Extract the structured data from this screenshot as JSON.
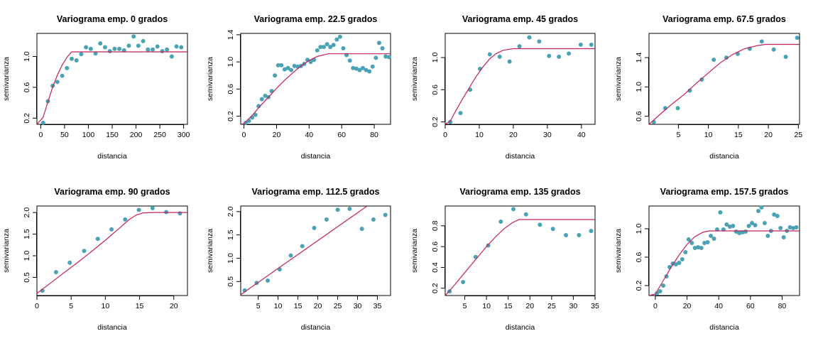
{
  "colors": {
    "points": "#4aa3b5",
    "model": "#c5205c",
    "axes": "#000000"
  },
  "chart_data": [
    {
      "type": "scatter",
      "title": "Variograma emp. 0 grados",
      "xlabel": "distancia",
      "ylabel": "semivarianza",
      "xlim": [
        -8,
        308
      ],
      "ylim": [
        0.12,
        1.3
      ],
      "xticks": [
        "0",
        "50",
        "100",
        "150",
        "200",
        "250",
        "300"
      ],
      "xtick_values": [
        0,
        50,
        100,
        150,
        200,
        250,
        300
      ],
      "yticks": [
        "0.2",
        "0.6",
        "1.0"
      ],
      "ytick_values": [
        0.2,
        0.6,
        1.0
      ],
      "points": {
        "x": [
          5,
          15,
          25,
          35,
          45,
          55,
          65,
          75,
          85,
          95,
          105,
          115,
          125,
          135,
          145,
          155,
          165,
          175,
          185,
          195,
          205,
          215,
          225,
          235,
          245,
          255,
          265,
          275,
          285,
          295
        ],
        "y": [
          0.14,
          0.42,
          0.62,
          0.67,
          0.75,
          0.85,
          0.97,
          0.95,
          1.03,
          1.12,
          1.1,
          1.04,
          1.17,
          1.12,
          1.07,
          1.1,
          1.1,
          1.08,
          1.14,
          1.26,
          1.14,
          1.2,
          1.09,
          1.09,
          1.13,
          1.07,
          1.09,
          1.0,
          1.13,
          1.12
        ]
      },
      "model": {
        "x": [
          -8,
          5,
          15,
          25,
          35,
          45,
          55,
          62,
          65,
          70,
          308
        ],
        "y": [
          0.12,
          0.21,
          0.41,
          0.6,
          0.76,
          0.89,
          0.99,
          1.04,
          1.06,
          1.06,
          1.06
        ]
      }
    },
    {
      "type": "scatter",
      "title": "Variograma emp. 22.5 grados",
      "xlabel": "distancia",
      "ylabel": "semivarianza",
      "xlim": [
        -2,
        90
      ],
      "ylim": [
        0.08,
        1.42
      ],
      "xticks": [
        "0",
        "20",
        "40",
        "60",
        "80"
      ],
      "xtick_values": [
        0,
        20,
        40,
        60,
        80
      ],
      "yticks": [
        "0.2",
        "0.6",
        "1.0",
        "1.4"
      ],
      "ytick_values": [
        0.2,
        0.6,
        1.0,
        1.4
      ],
      "points": {
        "x": [
          1,
          3,
          5,
          7,
          9,
          11,
          13,
          15,
          17,
          19,
          21,
          23,
          25,
          27,
          29,
          31,
          33,
          35,
          37,
          39,
          41,
          43,
          45,
          47,
          49,
          51,
          53,
          55,
          57,
          59,
          61,
          63,
          65,
          67,
          69,
          71,
          73,
          75,
          77,
          79,
          81,
          83,
          85,
          87,
          89
        ],
        "y": [
          0.1,
          0.13,
          0.18,
          0.22,
          0.35,
          0.45,
          0.5,
          0.48,
          0.57,
          0.8,
          0.95,
          0.95,
          0.89,
          0.91,
          0.88,
          0.94,
          0.93,
          0.94,
          0.97,
          1.03,
          1.0,
          1.03,
          1.17,
          1.22,
          1.22,
          1.26,
          1.22,
          1.25,
          1.33,
          1.37,
          1.2,
          1.1,
          1.02,
          0.91,
          0.9,
          0.88,
          0.91,
          0.88,
          0.86,
          0.93,
          1.06,
          1.28,
          1.2,
          1.08,
          1.07
        ]
      },
      "model": {
        "x": [
          -2,
          0,
          5,
          10,
          15,
          20,
          25,
          30,
          35,
          40,
          45,
          50,
          52,
          90
        ],
        "y": [
          0.08,
          0.09,
          0.21,
          0.35,
          0.48,
          0.61,
          0.73,
          0.84,
          0.94,
          1.02,
          1.08,
          1.11,
          1.12,
          1.12
        ]
      }
    },
    {
      "type": "scatter",
      "title": "Variograma emp. 45 grados",
      "xlabel": "distancia",
      "ylabel": "semivarianza",
      "xlim": [
        0,
        44
      ],
      "ylim": [
        0.17,
        1.3
      ],
      "xticks": [
        "0",
        "10",
        "20",
        "30",
        "40"
      ],
      "xtick_values": [
        0,
        10,
        20,
        30,
        40
      ],
      "yticks": [
        "0.2",
        "0.6",
        "1.0"
      ],
      "ytick_values": [
        0.2,
        0.6,
        1.0
      ],
      "points": {
        "x": [
          1.5,
          4.5,
          7.3,
          10.2,
          13.1,
          16.0,
          18.9,
          21.8,
          24.7,
          27.6,
          30.5,
          33.4,
          36.3,
          39.8,
          42.9
        ],
        "y": [
          0.2,
          0.31,
          0.6,
          0.86,
          1.04,
          1.01,
          0.95,
          1.14,
          1.25,
          1.2,
          1.02,
          1.01,
          1.05,
          1.16,
          1.16
        ]
      },
      "model": {
        "x": [
          0,
          1.5,
          3,
          5,
          7,
          9,
          11,
          13,
          15,
          17,
          18.5,
          20,
          44
        ],
        "y": [
          0.17,
          0.21,
          0.33,
          0.48,
          0.62,
          0.76,
          0.88,
          0.98,
          1.05,
          1.09,
          1.1,
          1.11,
          1.11
        ]
      }
    },
    {
      "type": "scatter",
      "title": "Variograma emp. 67.5 grados",
      "xlabel": "distancia",
      "ylabel": "semivarianza",
      "xlim": [
        0.1,
        25.2
      ],
      "ylim": [
        0.49,
        1.73
      ],
      "xticks": [
        "5",
        "10",
        "15",
        "20",
        "25"
      ],
      "xtick_values": [
        5,
        10,
        15,
        20,
        25
      ],
      "yticks": [
        "0.6",
        "1.0",
        "1.4"
      ],
      "ytick_values": [
        0.6,
        1.0,
        1.4
      ],
      "points": {
        "x": [
          0.9,
          2.8,
          4.9,
          6.9,
          8.9,
          10.9,
          13.0,
          14.9,
          16.9,
          18.9,
          20.9,
          22.9,
          24.8
        ],
        "y": [
          0.52,
          0.71,
          0.71,
          0.95,
          1.1,
          1.37,
          1.4,
          1.45,
          1.52,
          1.62,
          1.51,
          1.41,
          1.67
        ]
      },
      "model": {
        "x": [
          0.1,
          2,
          4,
          6,
          8,
          10,
          12,
          14,
          16,
          18,
          19.5,
          20.5,
          25.2
        ],
        "y": [
          0.49,
          0.63,
          0.77,
          0.9,
          1.05,
          1.19,
          1.33,
          1.44,
          1.52,
          1.56,
          1.58,
          1.58,
          1.58
        ]
      }
    },
    {
      "type": "scatter",
      "title": "Variograma emp. 90 grados",
      "xlabel": "distancia",
      "ylabel": "semivarianza",
      "xlim": [
        0,
        22
      ],
      "ylim": [
        0.08,
        2.15
      ],
      "xticks": [
        "0",
        "5",
        "10",
        "15",
        "20"
      ],
      "xtick_values": [
        0,
        5,
        10,
        15,
        20
      ],
      "yticks": [
        "0.5",
        "1.0",
        "1.5",
        "2.0"
      ],
      "ytick_values": [
        0.5,
        1.0,
        1.5,
        2.0
      ],
      "points": {
        "x": [
          0.8,
          2.8,
          4.8,
          6.9,
          8.9,
          10.9,
          12.9,
          14.9,
          16.9,
          18.9,
          20.9
        ],
        "y": [
          0.19,
          0.62,
          0.84,
          1.11,
          1.39,
          1.61,
          1.84,
          2.06,
          2.1,
          2.01,
          1.98
        ]
      },
      "model": {
        "x": [
          0,
          2,
          4,
          6,
          8,
          10,
          12,
          13.5,
          14.5,
          15.5,
          17,
          22
        ],
        "y": [
          0.13,
          0.37,
          0.61,
          0.85,
          1.1,
          1.36,
          1.63,
          1.84,
          1.94,
          1.99,
          2.0,
          2.0
        ]
      }
    },
    {
      "type": "scatter",
      "title": "Variograma emp. 112.5 grados",
      "xlabel": "distancia",
      "ylabel": "semivarianza",
      "xlim": [
        0.6,
        38.3
      ],
      "ylim": [
        0.2,
        2.12
      ],
      "xticks": [
        "5",
        "10",
        "15",
        "20",
        "25",
        "30",
        "35"
      ],
      "xtick_values": [
        5,
        10,
        15,
        20,
        25,
        30,
        35
      ],
      "yticks": [
        "0.5",
        "1.0",
        "1.5",
        "2.0"
      ],
      "ytick_values": [
        0.5,
        1.0,
        1.5,
        2.0
      ],
      "points": {
        "x": [
          1.6,
          4.6,
          7.4,
          10.4,
          13.2,
          16.1,
          19.1,
          22.2,
          25.0,
          28.0,
          31.1,
          34.0,
          37.0
        ],
        "y": [
          0.31,
          0.47,
          0.52,
          0.76,
          1.06,
          1.26,
          1.65,
          1.83,
          2.04,
          2.06,
          1.63,
          1.83,
          1.93
        ]
      },
      "model": {
        "x": [
          0.6,
          32.4
        ],
        "y": [
          0.22,
          2.12
        ]
      }
    },
    {
      "type": "scatter",
      "title": "Variograma emp. 135 grados",
      "xlabel": "distancia",
      "ylabel": "semivarianza",
      "xlim": [
        0.5,
        35
      ],
      "ylim": [
        0.13,
        0.99
      ],
      "xticks": [
        "5",
        "10",
        "15",
        "20",
        "25",
        "30",
        "35"
      ],
      "xtick_values": [
        5,
        10,
        15,
        20,
        25,
        30,
        35
      ],
      "yticks": [
        "0.2",
        "0.4",
        "0.6",
        "0.8"
      ],
      "ytick_values": [
        0.2,
        0.4,
        0.6,
        0.8
      ],
      "points": {
        "x": [
          1.5,
          4.6,
          7.5,
          10.4,
          13.3,
          16.2,
          19.1,
          22.3,
          25.3,
          28.3,
          31.3,
          34.1
        ],
        "y": [
          0.17,
          0.26,
          0.5,
          0.61,
          0.84,
          0.96,
          0.91,
          0.81,
          0.77,
          0.71,
          0.71,
          0.75
        ]
      },
      "model": {
        "x": [
          0.5,
          2,
          4,
          6,
          8,
          10,
          12,
          14,
          16,
          17.5,
          18.5,
          35
        ],
        "y": [
          0.13,
          0.2,
          0.3,
          0.4,
          0.5,
          0.6,
          0.69,
          0.77,
          0.83,
          0.86,
          0.86,
          0.86
        ]
      }
    },
    {
      "type": "scatter",
      "title": "Variograma emp. 157.5 grados",
      "xlabel": "distancia",
      "ylabel": "semivarianza",
      "xlim": [
        -4,
        91
      ],
      "ylim": [
        0.06,
        1.32
      ],
      "xticks": [
        "0",
        "20",
        "40",
        "60",
        "80"
      ],
      "xtick_values": [
        0,
        20,
        40,
        60,
        80
      ],
      "yticks": [
        "0.2",
        "0.6",
        "1.0"
      ],
      "ytick_values": [
        0.2,
        0.6,
        1.0
      ],
      "points": {
        "x": [
          1,
          3,
          5,
          7,
          9,
          11,
          13,
          15,
          17,
          19,
          21,
          23,
          25,
          27,
          29,
          31,
          33,
          35,
          37,
          39,
          41,
          43,
          45,
          47,
          49,
          51,
          53,
          55,
          57,
          59,
          61,
          63,
          65,
          67,
          69,
          71,
          73,
          75,
          77,
          79,
          81,
          83,
          85,
          87,
          89
        ],
        "y": [
          0.09,
          0.12,
          0.2,
          0.33,
          0.46,
          0.51,
          0.5,
          0.52,
          0.57,
          0.67,
          0.85,
          0.8,
          0.73,
          0.74,
          0.73,
          0.8,
          0.81,
          0.9,
          0.86,
          0.99,
          1.23,
          0.99,
          1.06,
          1.03,
          1.04,
          0.96,
          0.94,
          0.95,
          0.96,
          1.04,
          1.08,
          1.05,
          1.25,
          1.3,
          1.08,
          0.9,
          0.97,
          1.2,
          1.18,
          1.01,
          0.88,
          0.97,
          1.02,
          1.01,
          1.02
        ]
      },
      "model": {
        "x": [
          -4,
          0,
          5,
          10,
          15,
          20,
          25,
          30,
          32,
          34,
          91
        ],
        "y": [
          0.06,
          0.08,
          0.27,
          0.46,
          0.63,
          0.78,
          0.89,
          0.95,
          0.96,
          0.97,
          0.97
        ]
      }
    }
  ]
}
